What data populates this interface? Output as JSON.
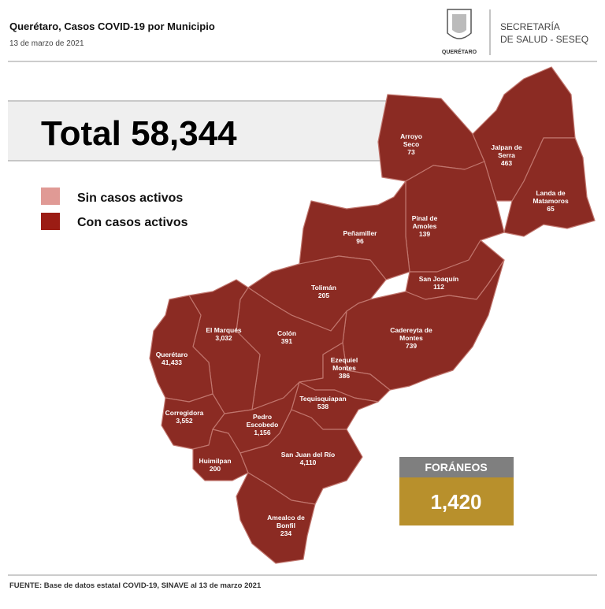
{
  "header": {
    "title": "Querétaro, Casos COVID-19 por Municipio",
    "date": "13 de marzo de 2021",
    "logo_caption": "QUERÉTARO",
    "agency_lines": [
      "SECRETARÍA",
      "DE SALUD - SESEQ"
    ]
  },
  "total": {
    "label": "Total",
    "value": "58,344"
  },
  "legend": [
    {
      "label": "Sin casos activos",
      "color": "#e09a95"
    },
    {
      "label": "Con casos activos",
      "color": "#9b1c14"
    }
  ],
  "municipalities": [
    {
      "name_lines": [
        "Arroyo",
        "Seco"
      ],
      "value": "73"
    },
    {
      "name_lines": [
        "Jalpan de",
        "Serra"
      ],
      "value": "463"
    },
    {
      "name_lines": [
        "Landa de",
        "Matamoros"
      ],
      "value": "65"
    },
    {
      "name_lines": [
        "Pinal de",
        "Amoles"
      ],
      "value": "139"
    },
    {
      "name_lines": [
        "Peñamiller"
      ],
      "value": "96"
    },
    {
      "name_lines": [
        "San Joaquín"
      ],
      "value": "112"
    },
    {
      "name_lines": [
        "Tolimán"
      ],
      "value": "205"
    },
    {
      "name_lines": [
        "Cadereyta de",
        "Montes"
      ],
      "value": "739"
    },
    {
      "name_lines": [
        "Colón"
      ],
      "value": "391"
    },
    {
      "name_lines": [
        "El Marqués"
      ],
      "value": "3,032"
    },
    {
      "name_lines": [
        "Querétaro"
      ],
      "value": "41,433"
    },
    {
      "name_lines": [
        "Ezequiel",
        "Montes"
      ],
      "value": "386"
    },
    {
      "name_lines": [
        "Tequisquiapan"
      ],
      "value": "538"
    },
    {
      "name_lines": [
        "Corregidora"
      ],
      "value": "3,552"
    },
    {
      "name_lines": [
        "Pedro",
        "Escobedo"
      ],
      "value": "1,156"
    },
    {
      "name_lines": [
        "Huimilpan"
      ],
      "value": "200"
    },
    {
      "name_lines": [
        "San Juan del Río"
      ],
      "value": "4,110"
    },
    {
      "name_lines": [
        "Amealco de",
        "Bonfil"
      ],
      "value": "234"
    }
  ],
  "foraneos": {
    "label": "FORÁNEOS",
    "value": "1,420"
  },
  "footer": {
    "source": "FUENTE: Base de datos estatal COVID-19, SINAVE al 13 de marzo 2021"
  }
}
